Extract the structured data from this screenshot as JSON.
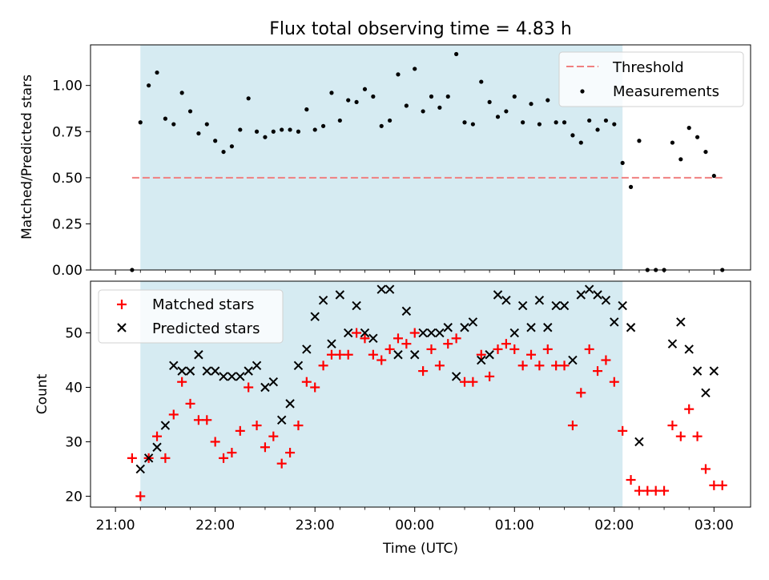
{
  "chart_data": [
    {
      "type": "scatter",
      "title": "Flux total observing time = 4.83 h",
      "xlabel": "",
      "ylabel": "Matched/Predicted stars",
      "ylim": [
        0,
        1.22
      ],
      "y_ticks": [
        "0.00",
        "0.25",
        "0.50",
        "0.75",
        "1.00"
      ],
      "legend_position": "top-right",
      "highlight_span": {
        "start": "21:15",
        "end": "02:05",
        "color": "#add8e6"
      },
      "threshold": {
        "name": "Threshold",
        "value": 0.5,
        "x_start": "21:10",
        "x_end": "03:05",
        "color": "#f08080"
      },
      "series": [
        {
          "name": "Measurements",
          "color": "#000000",
          "points": [
            [
              "21:10",
              0.0
            ],
            [
              "21:15",
              0.8
            ],
            [
              "21:20",
              1.0
            ],
            [
              "21:25",
              1.07
            ],
            [
              "21:30",
              0.82
            ],
            [
              "21:35",
              0.79
            ],
            [
              "21:40",
              0.96
            ],
            [
              "21:45",
              0.86
            ],
            [
              "21:50",
              0.74
            ],
            [
              "21:55",
              0.79
            ],
            [
              "22:00",
              0.7
            ],
            [
              "22:05",
              0.64
            ],
            [
              "22:10",
              0.67
            ],
            [
              "22:15",
              0.76
            ],
            [
              "22:20",
              0.93
            ],
            [
              "22:25",
              0.75
            ],
            [
              "22:30",
              0.72
            ],
            [
              "22:35",
              0.75
            ],
            [
              "22:40",
              0.76
            ],
            [
              "22:45",
              0.76
            ],
            [
              "22:50",
              0.75
            ],
            [
              "22:55",
              0.87
            ],
            [
              "23:00",
              0.76
            ],
            [
              "23:05",
              0.78
            ],
            [
              "23:10",
              0.96
            ],
            [
              "23:15",
              0.81
            ],
            [
              "23:20",
              0.92
            ],
            [
              "23:25",
              0.91
            ],
            [
              "23:30",
              0.98
            ],
            [
              "23:35",
              0.94
            ],
            [
              "23:40",
              0.78
            ],
            [
              "23:45",
              0.81
            ],
            [
              "23:50",
              1.06
            ],
            [
              "23:55",
              0.89
            ],
            [
              "00:00",
              1.09
            ],
            [
              "00:05",
              0.86
            ],
            [
              "00:10",
              0.94
            ],
            [
              "00:15",
              0.88
            ],
            [
              "00:20",
              0.94
            ],
            [
              "00:25",
              1.17
            ],
            [
              "00:30",
              0.8
            ],
            [
              "00:35",
              0.79
            ],
            [
              "00:40",
              1.02
            ],
            [
              "00:45",
              0.91
            ],
            [
              "00:50",
              0.83
            ],
            [
              "00:55",
              0.86
            ],
            [
              "01:00",
              0.94
            ],
            [
              "01:05",
              0.8
            ],
            [
              "01:10",
              0.9
            ],
            [
              "01:15",
              0.79
            ],
            [
              "01:20",
              0.92
            ],
            [
              "01:25",
              0.8
            ],
            [
              "01:30",
              0.8
            ],
            [
              "01:35",
              0.73
            ],
            [
              "01:40",
              0.69
            ],
            [
              "01:45",
              0.81
            ],
            [
              "01:50",
              0.76
            ],
            [
              "01:55",
              0.81
            ],
            [
              "02:00",
              0.79
            ],
            [
              "02:05",
              0.58
            ],
            [
              "02:10",
              0.45
            ],
            [
              "02:15",
              0.7
            ],
            [
              "02:20",
              0.0
            ],
            [
              "02:25",
              0.0
            ],
            [
              "02:30",
              0.0
            ],
            [
              "02:35",
              0.69
            ],
            [
              "02:40",
              0.6
            ],
            [
              "02:45",
              0.77
            ],
            [
              "02:50",
              0.72
            ],
            [
              "02:55",
              0.64
            ],
            [
              "03:00",
              0.51
            ],
            [
              "03:05",
              0.0
            ]
          ]
        }
      ]
    },
    {
      "type": "scatter",
      "title": "",
      "xlabel": "Time (UTC)",
      "ylabel": "Count",
      "ylim": [
        18,
        59.5
      ],
      "y_ticks": [
        "20",
        "30",
        "40",
        "50"
      ],
      "x_ticks": [
        "21:00",
        "22:00",
        "23:00",
        "00:00",
        "01:00",
        "02:00",
        "03:00"
      ],
      "legend_position": "top-left",
      "highlight_span": {
        "start": "21:15",
        "end": "02:05",
        "color": "#add8e6"
      },
      "series": [
        {
          "name": "Matched stars",
          "marker": "+",
          "color": "#ff0000",
          "points": [
            [
              "21:10",
              27
            ],
            [
              "21:15",
              20
            ],
            [
              "21:20",
              27
            ],
            [
              "21:25",
              31
            ],
            [
              "21:30",
              27
            ],
            [
              "21:35",
              35
            ],
            [
              "21:40",
              41
            ],
            [
              "21:45",
              37
            ],
            [
              "21:50",
              34
            ],
            [
              "21:55",
              34
            ],
            [
              "22:00",
              30
            ],
            [
              "22:05",
              27
            ],
            [
              "22:10",
              28
            ],
            [
              "22:15",
              32
            ],
            [
              "22:20",
              40
            ],
            [
              "22:25",
              33
            ],
            [
              "22:30",
              29
            ],
            [
              "22:35",
              31
            ],
            [
              "22:40",
              26
            ],
            [
              "22:45",
              28
            ],
            [
              "22:50",
              33
            ],
            [
              "22:55",
              41
            ],
            [
              "23:00",
              40
            ],
            [
              "23:05",
              44
            ],
            [
              "23:10",
              46
            ],
            [
              "23:15",
              46
            ],
            [
              "23:20",
              46
            ],
            [
              "23:25",
              50
            ],
            [
              "23:30",
              49
            ],
            [
              "23:35",
              46
            ],
            [
              "23:40",
              45
            ],
            [
              "23:45",
              47
            ],
            [
              "23:50",
              49
            ],
            [
              "23:55",
              48
            ],
            [
              "00:00",
              50
            ],
            [
              "00:05",
              43
            ],
            [
              "00:10",
              47
            ],
            [
              "00:15",
              44
            ],
            [
              "00:20",
              48
            ],
            [
              "00:25",
              49
            ],
            [
              "00:30",
              41
            ],
            [
              "00:35",
              41
            ],
            [
              "00:40",
              46
            ],
            [
              "00:45",
              42
            ],
            [
              "00:50",
              47
            ],
            [
              "00:55",
              48
            ],
            [
              "01:00",
              47
            ],
            [
              "01:05",
              44
            ],
            [
              "01:10",
              46
            ],
            [
              "01:15",
              44
            ],
            [
              "01:20",
              47
            ],
            [
              "01:25",
              44
            ],
            [
              "01:30",
              44
            ],
            [
              "01:35",
              33
            ],
            [
              "01:40",
              39
            ],
            [
              "01:45",
              47
            ],
            [
              "01:50",
              43
            ],
            [
              "01:55",
              45
            ],
            [
              "02:00",
              41
            ],
            [
              "02:05",
              32
            ],
            [
              "02:10",
              23
            ],
            [
              "02:15",
              21
            ],
            [
              "02:20",
              21
            ],
            [
              "02:25",
              21
            ],
            [
              "02:30",
              21
            ],
            [
              "02:35",
              33
            ],
            [
              "02:40",
              31
            ],
            [
              "02:45",
              36
            ],
            [
              "02:50",
              31
            ],
            [
              "02:55",
              25
            ],
            [
              "03:00",
              22
            ],
            [
              "03:05",
              22
            ]
          ]
        },
        {
          "name": "Predicted stars",
          "marker": "x",
          "color": "#000000",
          "points": [
            [
              "21:15",
              25
            ],
            [
              "21:20",
              27
            ],
            [
              "21:25",
              29
            ],
            [
              "21:30",
              33
            ],
            [
              "21:35",
              44
            ],
            [
              "21:40",
              43
            ],
            [
              "21:45",
              43
            ],
            [
              "21:50",
              46
            ],
            [
              "21:55",
              43
            ],
            [
              "22:00",
              43
            ],
            [
              "22:05",
              42
            ],
            [
              "22:10",
              42
            ],
            [
              "22:15",
              42
            ],
            [
              "22:20",
              43
            ],
            [
              "22:25",
              44
            ],
            [
              "22:30",
              40
            ],
            [
              "22:35",
              41
            ],
            [
              "22:40",
              34
            ],
            [
              "22:45",
              37
            ],
            [
              "22:50",
              44
            ],
            [
              "22:55",
              47
            ],
            [
              "23:00",
              53
            ],
            [
              "23:05",
              56
            ],
            [
              "23:10",
              48
            ],
            [
              "23:15",
              57
            ],
            [
              "23:20",
              50
            ],
            [
              "23:25",
              55
            ],
            [
              "23:30",
              50
            ],
            [
              "23:35",
              49
            ],
            [
              "23:40",
              58
            ],
            [
              "23:45",
              58
            ],
            [
              "23:50",
              46
            ],
            [
              "23:55",
              54
            ],
            [
              "00:00",
              46
            ],
            [
              "00:05",
              50
            ],
            [
              "00:10",
              50
            ],
            [
              "00:15",
              50
            ],
            [
              "00:20",
              51
            ],
            [
              "00:25",
              42
            ],
            [
              "00:30",
              51
            ],
            [
              "00:35",
              52
            ],
            [
              "00:40",
              45
            ],
            [
              "00:45",
              46
            ],
            [
              "00:50",
              57
            ],
            [
              "00:55",
              56
            ],
            [
              "01:00",
              50
            ],
            [
              "01:05",
              55
            ],
            [
              "01:10",
              51
            ],
            [
              "01:15",
              56
            ],
            [
              "01:20",
              51
            ],
            [
              "01:25",
              55
            ],
            [
              "01:30",
              55
            ],
            [
              "01:35",
              45
            ],
            [
              "01:40",
              57
            ],
            [
              "01:45",
              58
            ],
            [
              "01:50",
              57
            ],
            [
              "01:55",
              56
            ],
            [
              "02:00",
              52
            ],
            [
              "02:05",
              55
            ],
            [
              "02:10",
              51
            ],
            [
              "02:15",
              30
            ],
            [
              "02:35",
              48
            ],
            [
              "02:40",
              52
            ],
            [
              "02:45",
              47
            ],
            [
              "02:50",
              43
            ],
            [
              "02:55",
              39
            ],
            [
              "03:00",
              43
            ]
          ]
        }
      ]
    }
  ]
}
